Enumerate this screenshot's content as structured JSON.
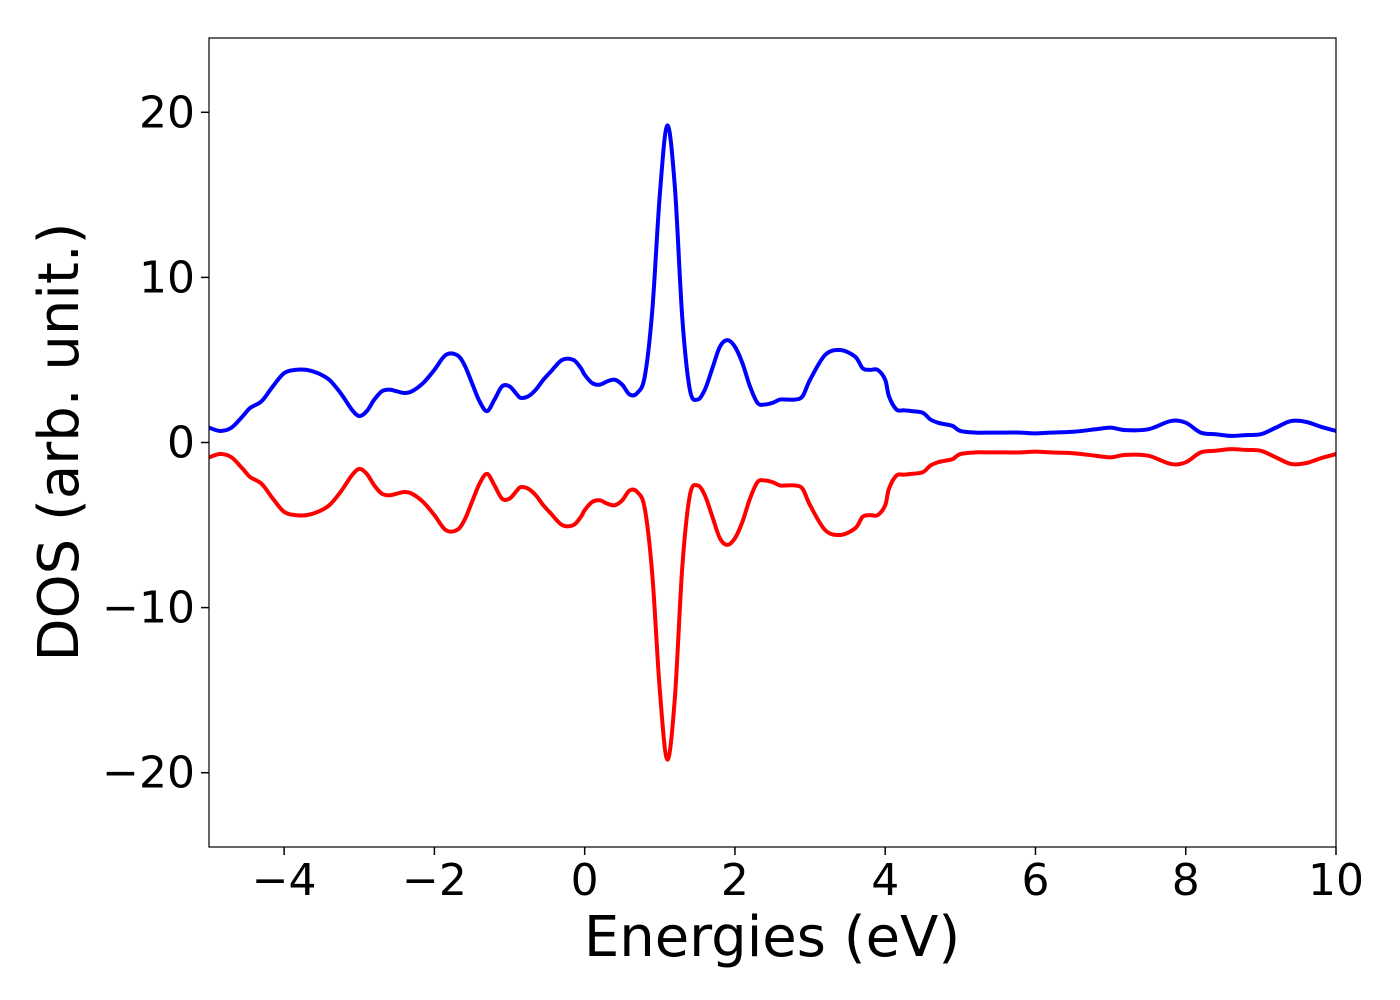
{
  "chart_data": {
    "type": "line",
    "title": "",
    "xlabel": "Energies (eV)",
    "ylabel": "DOS (arb. unit.)",
    "xlim": [
      -5,
      10
    ],
    "ylim": [
      -24.5,
      24.5
    ],
    "xticks": [
      -4,
      -2,
      0,
      2,
      4,
      6,
      8,
      10
    ],
    "xtick_labels": [
      "−4",
      "−2",
      "0",
      "2",
      "4",
      "6",
      "8",
      "10"
    ],
    "yticks": [
      20,
      10,
      0,
      -10,
      -20
    ],
    "ytick_labels": [
      "20",
      "10",
      "0",
      "−10",
      "−20"
    ],
    "grid": false,
    "legend": "none",
    "series": [
      {
        "color": "#0000ff",
        "x": [
          -5.0,
          -4.85,
          -4.7,
          -4.55,
          -4.45,
          -4.3,
          -4.15,
          -4.0,
          -3.85,
          -3.7,
          -3.55,
          -3.4,
          -3.25,
          -3.1,
          -3.0,
          -2.9,
          -2.8,
          -2.7,
          -2.6,
          -2.5,
          -2.4,
          -2.3,
          -2.15,
          -2.0,
          -1.85,
          -1.7,
          -1.6,
          -1.5,
          -1.4,
          -1.3,
          -1.2,
          -1.1,
          -1.0,
          -0.9,
          -0.85,
          -0.75,
          -0.65,
          -0.55,
          -0.45,
          -0.3,
          -0.15,
          -0.05,
          0.0,
          0.1,
          0.2,
          0.3,
          0.4,
          0.5,
          0.6,
          0.7,
          0.8,
          0.9,
          1.0,
          1.1,
          1.2,
          1.3,
          1.4,
          1.5,
          1.6,
          1.7,
          1.8,
          1.9,
          2.0,
          2.1,
          2.2,
          2.3,
          2.4,
          2.5,
          2.6,
          2.7,
          2.8,
          2.9,
          3.0,
          3.2,
          3.4,
          3.6,
          3.7,
          3.8,
          3.9,
          4.0,
          4.05,
          4.15,
          4.25,
          4.35,
          4.5,
          4.6,
          4.7,
          4.8,
          4.9,
          5.0,
          5.2,
          5.4,
          5.6,
          5.8,
          6.0,
          6.2,
          6.5,
          6.8,
          7.0,
          7.2,
          7.5,
          7.8,
          8.0,
          8.2,
          8.4,
          8.6,
          8.8,
          9.0,
          9.2,
          9.4,
          9.6,
          9.8,
          10.0
        ],
        "y": [
          0.9,
          0.7,
          0.9,
          1.6,
          2.1,
          2.5,
          3.4,
          4.2,
          4.4,
          4.4,
          4.2,
          3.8,
          3.0,
          2.0,
          1.6,
          1.9,
          2.6,
          3.1,
          3.2,
          3.1,
          3.0,
          3.1,
          3.6,
          4.4,
          5.3,
          5.3,
          4.7,
          3.6,
          2.5,
          1.9,
          2.6,
          3.4,
          3.4,
          2.9,
          2.7,
          2.8,
          3.2,
          3.8,
          4.3,
          5.0,
          5.0,
          4.5,
          4.1,
          3.6,
          3.5,
          3.7,
          3.8,
          3.5,
          2.9,
          3.0,
          4.0,
          8.0,
          15.0,
          19.2,
          15.5,
          7.5,
          3.2,
          2.6,
          3.2,
          4.5,
          5.8,
          6.2,
          5.8,
          4.8,
          3.4,
          2.4,
          2.3,
          2.4,
          2.6,
          2.6,
          2.6,
          2.8,
          3.8,
          5.3,
          5.6,
          5.2,
          4.5,
          4.4,
          4.4,
          3.8,
          2.8,
          2.0,
          1.95,
          1.9,
          1.8,
          1.4,
          1.2,
          1.1,
          1.0,
          0.7,
          0.6,
          0.6,
          0.6,
          0.6,
          0.55,
          0.6,
          0.65,
          0.8,
          0.9,
          0.75,
          0.8,
          1.3,
          1.2,
          0.6,
          0.5,
          0.4,
          0.45,
          0.5,
          0.9,
          1.3,
          1.25,
          0.95,
          0.7
        ]
      },
      {
        "color": "#ff0000",
        "x": [
          -5.0,
          -4.85,
          -4.7,
          -4.55,
          -4.45,
          -4.3,
          -4.15,
          -4.0,
          -3.85,
          -3.7,
          -3.55,
          -3.4,
          -3.25,
          -3.1,
          -3.0,
          -2.9,
          -2.8,
          -2.7,
          -2.6,
          -2.5,
          -2.4,
          -2.3,
          -2.15,
          -2.0,
          -1.85,
          -1.7,
          -1.6,
          -1.5,
          -1.4,
          -1.3,
          -1.2,
          -1.1,
          -1.0,
          -0.9,
          -0.85,
          -0.75,
          -0.65,
          -0.55,
          -0.45,
          -0.3,
          -0.15,
          -0.05,
          0.0,
          0.1,
          0.2,
          0.3,
          0.4,
          0.5,
          0.6,
          0.7,
          0.8,
          0.9,
          1.0,
          1.1,
          1.2,
          1.3,
          1.4,
          1.5,
          1.6,
          1.7,
          1.8,
          1.9,
          2.0,
          2.1,
          2.2,
          2.3,
          2.4,
          2.5,
          2.6,
          2.7,
          2.8,
          2.9,
          3.0,
          3.2,
          3.4,
          3.6,
          3.7,
          3.8,
          3.9,
          4.0,
          4.05,
          4.15,
          4.25,
          4.35,
          4.5,
          4.6,
          4.7,
          4.8,
          4.9,
          5.0,
          5.2,
          5.4,
          5.6,
          5.8,
          6.0,
          6.2,
          6.5,
          6.8,
          7.0,
          7.2,
          7.5,
          7.8,
          8.0,
          8.2,
          8.4,
          8.6,
          8.8,
          9.0,
          9.2,
          9.4,
          9.6,
          9.8,
          10.0
        ],
        "y": [
          -0.9,
          -0.7,
          -0.9,
          -1.6,
          -2.1,
          -2.5,
          -3.4,
          -4.2,
          -4.4,
          -4.4,
          -4.2,
          -3.8,
          -3.0,
          -2.0,
          -1.6,
          -1.9,
          -2.6,
          -3.1,
          -3.2,
          -3.1,
          -3.0,
          -3.1,
          -3.6,
          -4.4,
          -5.3,
          -5.3,
          -4.7,
          -3.6,
          -2.5,
          -1.9,
          -2.6,
          -3.4,
          -3.4,
          -2.9,
          -2.7,
          -2.8,
          -3.2,
          -3.8,
          -4.3,
          -5.0,
          -5.0,
          -4.5,
          -4.1,
          -3.6,
          -3.5,
          -3.7,
          -3.8,
          -3.5,
          -2.9,
          -3.0,
          -4.0,
          -8.0,
          -15.0,
          -19.2,
          -15.5,
          -7.5,
          -3.2,
          -2.6,
          -3.2,
          -4.5,
          -5.8,
          -6.2,
          -5.8,
          -4.8,
          -3.4,
          -2.4,
          -2.3,
          -2.4,
          -2.6,
          -2.6,
          -2.6,
          -2.8,
          -3.8,
          -5.3,
          -5.6,
          -5.2,
          -4.5,
          -4.4,
          -4.4,
          -3.8,
          -2.8,
          -2.0,
          -1.95,
          -1.9,
          -1.8,
          -1.4,
          -1.2,
          -1.1,
          -1.0,
          -0.7,
          -0.6,
          -0.6,
          -0.6,
          -0.6,
          -0.55,
          -0.6,
          -0.65,
          -0.8,
          -0.9,
          -0.75,
          -0.8,
          -1.3,
          -1.2,
          -0.6,
          -0.5,
          -0.4,
          -0.45,
          -0.5,
          -0.9,
          -1.3,
          -1.25,
          -0.95,
          -0.7
        ]
      }
    ]
  }
}
